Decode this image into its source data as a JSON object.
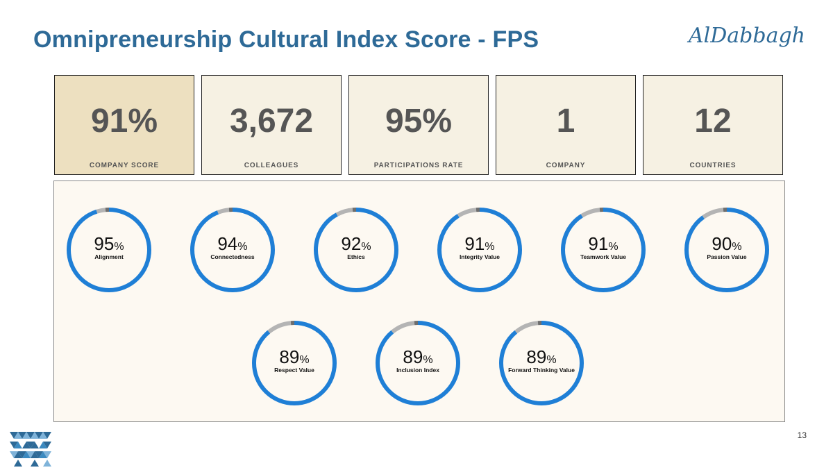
{
  "slide": {
    "title": "Omnipreneurship Cultural Index Score - FPS",
    "logo_text": "AlDabbagh",
    "page_number": "13"
  },
  "kpis": [
    {
      "value": "91%",
      "label": "COMPANY SCORE"
    },
    {
      "value": "3,672",
      "label": "COLLEAGUES"
    },
    {
      "value": "95%",
      "label": "PARTICIPATIONS RATE"
    },
    {
      "value": "1",
      "label": "COMPANY"
    },
    {
      "value": "12",
      "label": "COUNTRIES"
    }
  ],
  "gauges": [
    {
      "number": "95",
      "unit": "%",
      "label": "Alignment",
      "percent": 95
    },
    {
      "number": "94",
      "unit": "%",
      "label": "Connectedness",
      "percent": 94
    },
    {
      "number": "92",
      "unit": "%",
      "label": "Ethics",
      "percent": 92
    },
    {
      "number": "91",
      "unit": "%",
      "label": "Integrity Value",
      "percent": 91
    },
    {
      "number": "91",
      "unit": "%",
      "label": "Teamwork Value",
      "percent": 91
    },
    {
      "number": "90",
      "unit": "%",
      "label": "Passion Value",
      "percent": 90
    },
    {
      "number": "89",
      "unit": "%",
      "label": "Respect Value",
      "percent": 89
    },
    {
      "number": "89",
      "unit": "%",
      "label": "Inclusion Index",
      "percent": 89
    },
    {
      "number": "89",
      "unit": "%",
      "label": "Forward Thinking Value",
      "percent": 89
    }
  ],
  "colors": {
    "title": "#2e6a97",
    "gauge_fill": "#1f7fd6",
    "gauge_rest": "#b4b4b4",
    "gauge_dark": "#6e6e6e",
    "kpi_highlight": "#ede0c0",
    "kpi_bg": "#f6f1e3"
  },
  "icons": {
    "footer_logo": "triangle-pattern-logo-icon"
  }
}
